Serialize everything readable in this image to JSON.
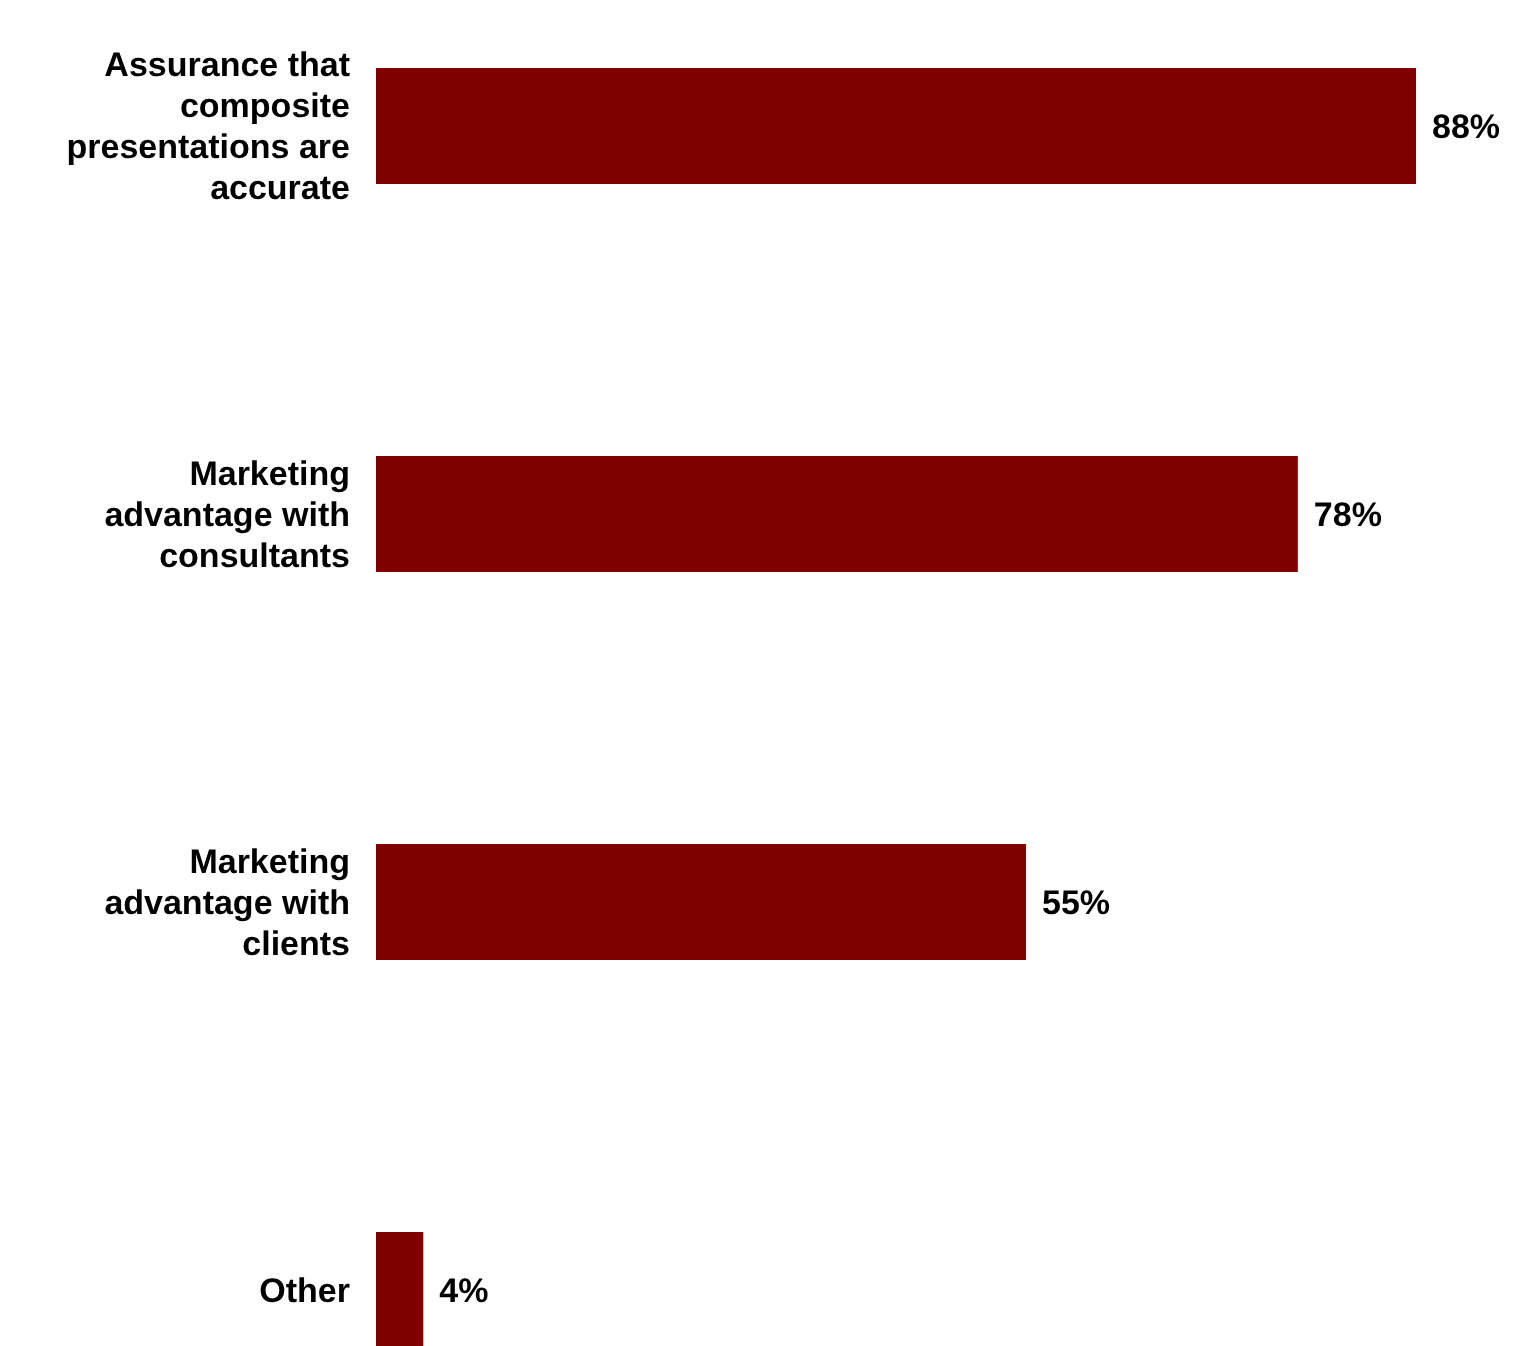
{
  "chart_data": {
    "type": "bar",
    "orientation": "horizontal",
    "categories": [
      "Assurance that composite presentations are accurate",
      "Marketing advantage with consultants",
      "Marketing advantage with clients",
      "Other"
    ],
    "values": [
      88,
      78,
      55,
      4
    ],
    "value_labels": [
      "88%",
      "78%",
      "55%",
      "4%"
    ],
    "color": "#800000"
  }
}
